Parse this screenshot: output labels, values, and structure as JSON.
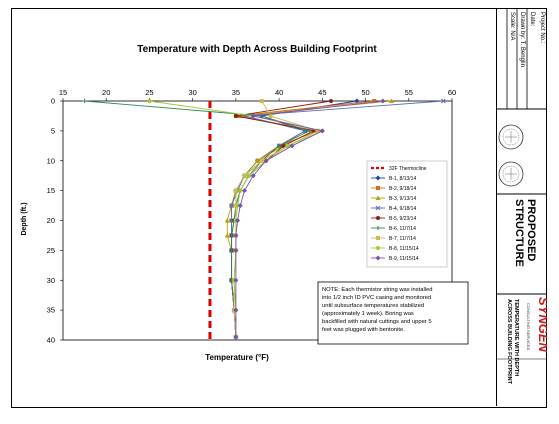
{
  "title_block": {
    "project_no_label": "Project No.:",
    "date_label": "Date:",
    "drawn_by_label": "Drawn by: T. Benglin",
    "scale_label": "Scale: N/A",
    "drawing_title_1": "PROPOSED",
    "drawing_title_2": "STRUCTURE",
    "company_name": "SYNGEN",
    "company_sub": "CONSULTING SERVICES",
    "sheet_title_1": "TEMPERATURE WITH DEPTH",
    "sheet_title_2": "ACROSS BUILDING FOOTPRINT"
  },
  "chart_data": {
    "type": "line",
    "title": "Temperature with Depth Across Building Footprint",
    "xlabel": "Temperature (°F)",
    "ylabel": "Depth (ft.)",
    "xlim": [
      15,
      60
    ],
    "ylim": [
      0,
      40
    ],
    "x_ticks": [
      "15",
      "20",
      "25",
      "30",
      "35",
      "40",
      "45",
      "50",
      "55",
      "60"
    ],
    "y_ticks": [
      "0",
      "5",
      "10",
      "15",
      "20",
      "25",
      "30",
      "35",
      "40"
    ],
    "x_axis_position": "top",
    "y_axis_inverted": true,
    "grid": false,
    "legend_position": "right",
    "freeze_line": {
      "name": "32F Thermocline",
      "x": 32,
      "color": "#dd0000"
    },
    "depths": [
      0,
      2.5,
      5,
      7.5,
      10,
      12.5,
      15,
      17.5,
      20,
      22.5,
      25,
      30,
      35,
      39.5
    ],
    "series": [
      {
        "name": "B-1, 8/13/14",
        "color": "#1f3f8f",
        "marker": "diamond",
        "values": [
          49,
          38,
          43,
          40,
          37.5,
          36,
          35,
          34.5,
          34.5,
          34.5,
          34.5,
          34.5,
          34.8,
          35
        ]
      },
      {
        "name": "B-2, 9/18/14",
        "color": "#d2691e",
        "marker": "square",
        "values": [
          51,
          35,
          44.5,
          40,
          37.5,
          36,
          35,
          34.5,
          34.5,
          34.5,
          34.5,
          34.5,
          34.8,
          35
        ]
      },
      {
        "name": "B-3, 9/13/14",
        "color": "#b8a000",
        "marker": "triangle",
        "values": [
          53,
          35.5,
          44,
          40.5,
          37.5,
          36,
          35,
          34.5,
          34,
          34,
          34.5,
          34.5,
          34.8,
          35
        ]
      },
      {
        "name": "B-4, 9/18/14",
        "color": "#5a6fb0",
        "marker": "x",
        "values": [
          59,
          36,
          43,
          40,
          38,
          36,
          35.2,
          34.5,
          34.5,
          34.5,
          34.5,
          34.5,
          34.8,
          35
        ]
      },
      {
        "name": "B-5, 9/23/14",
        "color": "#8b1a1a",
        "marker": "circle",
        "values": [
          46,
          35,
          44,
          40.5,
          38.5,
          36.5,
          35.5,
          35,
          34.8,
          34.5,
          34.5,
          34.5,
          34.8,
          35
        ]
      },
      {
        "name": "B-6, 11/7/14",
        "color": "#2e8b57",
        "marker": "plus",
        "values": [
          17.5,
          38,
          43.5,
          40,
          38,
          36.5,
          35.5,
          35,
          34.8,
          34.5,
          34.5,
          34.5,
          34.8,
          35
        ]
      },
      {
        "name": "B-7, 11/7/14",
        "color": "#ccbb55",
        "marker": "square",
        "values": [
          38,
          39,
          44.5,
          41,
          38,
          36,
          35,
          35,
          35,
          35,
          35,
          34.8,
          34.8,
          35
        ]
      },
      {
        "name": "B-8, 11/15/14",
        "color": "#9acd32",
        "marker": "circle",
        "values": [
          25,
          37,
          45,
          41,
          38.5,
          36.5,
          35.5,
          35.2,
          35,
          35,
          35,
          34.8,
          35,
          35
        ]
      },
      {
        "name": "B-9, 11/15/14",
        "color": "#7a4fb0",
        "marker": "diamond",
        "values": [
          52,
          37,
          45,
          41.5,
          38.5,
          37,
          36,
          35.5,
          35.2,
          35,
          35,
          35,
          35,
          35
        ]
      }
    ],
    "note": "NOTE: Each thermistor string was installed into 1/2 inch ID PVC casing and monitored until subsurface temperatures stabilized (approximately 1 week). Boring was backfilled with natural cuttings and upper 5 feet was plugged with bentonite."
  }
}
